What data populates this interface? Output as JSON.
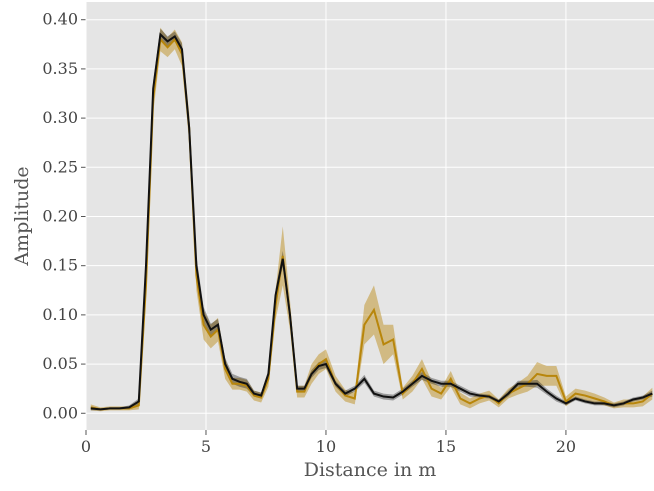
{
  "chart_data": {
    "type": "line",
    "xlabel": "Distance in m",
    "ylabel": "Amplitude",
    "x": [
      0.2,
      0.6,
      1.0,
      1.4,
      1.8,
      2.2,
      2.5,
      2.8,
      3.1,
      3.4,
      3.7,
      4.0,
      4.3,
      4.6,
      4.9,
      5.2,
      5.5,
      5.8,
      6.1,
      6.4,
      6.7,
      7.0,
      7.3,
      7.6,
      7.9,
      8.2,
      8.5,
      8.8,
      9.1,
      9.4,
      9.7,
      10.0,
      10.4,
      10.8,
      11.2,
      11.6,
      12.0,
      12.4,
      12.8,
      13.2,
      13.6,
      14.0,
      14.4,
      14.8,
      15.2,
      15.6,
      16.0,
      16.4,
      16.8,
      17.2,
      17.6,
      18.0,
      18.4,
      18.8,
      19.2,
      19.6,
      20.0,
      20.4,
      20.8,
      21.2,
      21.6,
      22.0,
      22.4,
      22.8,
      23.2,
      23.6
    ],
    "series": [
      {
        "color": "#b8860b",
        "values": [
          0.006,
          0.004,
          0.005,
          0.005,
          0.005,
          0.008,
          0.13,
          0.32,
          0.38,
          0.372,
          0.38,
          0.365,
          0.29,
          0.14,
          0.09,
          0.078,
          0.085,
          0.045,
          0.03,
          0.03,
          0.028,
          0.018,
          0.016,
          0.035,
          0.11,
          0.16,
          0.1,
          0.022,
          0.022,
          0.04,
          0.05,
          0.055,
          0.03,
          0.018,
          0.015,
          0.09,
          0.105,
          0.07,
          0.075,
          0.02,
          0.03,
          0.045,
          0.025,
          0.02,
          0.035,
          0.015,
          0.01,
          0.015,
          0.018,
          0.01,
          0.02,
          0.025,
          0.03,
          0.04,
          0.038,
          0.038,
          0.012,
          0.02,
          0.018,
          0.015,
          0.012,
          0.008,
          0.01,
          0.01,
          0.012,
          0.02
        ],
        "errors": [
          0.003,
          0.002,
          0.002,
          0.002,
          0.002,
          0.004,
          0.012,
          0.015,
          0.012,
          0.01,
          0.01,
          0.012,
          0.015,
          0.015,
          0.015,
          0.012,
          0.012,
          0.01,
          0.006,
          0.006,
          0.006,
          0.005,
          0.005,
          0.008,
          0.015,
          0.03,
          0.015,
          0.006,
          0.006,
          0.01,
          0.01,
          0.01,
          0.008,
          0.006,
          0.006,
          0.02,
          0.025,
          0.02,
          0.015,
          0.006,
          0.008,
          0.01,
          0.008,
          0.006,
          0.008,
          0.006,
          0.005,
          0.005,
          0.005,
          0.004,
          0.005,
          0.006,
          0.008,
          0.012,
          0.01,
          0.01,
          0.005,
          0.005,
          0.005,
          0.005,
          0.004,
          0.003,
          0.004,
          0.004,
          0.005,
          0.006
        ]
      },
      {
        "color": "#111111",
        "values": [
          0.005,
          0.004,
          0.005,
          0.005,
          0.006,
          0.012,
          0.15,
          0.33,
          0.385,
          0.378,
          0.383,
          0.37,
          0.29,
          0.15,
          0.1,
          0.085,
          0.09,
          0.05,
          0.035,
          0.032,
          0.03,
          0.02,
          0.018,
          0.04,
          0.12,
          0.157,
          0.1,
          0.025,
          0.025,
          0.04,
          0.048,
          0.05,
          0.03,
          0.02,
          0.025,
          0.035,
          0.02,
          0.017,
          0.016,
          0.022,
          0.03,
          0.038,
          0.033,
          0.03,
          0.03,
          0.025,
          0.02,
          0.018,
          0.017,
          0.012,
          0.02,
          0.03,
          0.03,
          0.03,
          0.022,
          0.015,
          0.01,
          0.015,
          0.012,
          0.01,
          0.01,
          0.008,
          0.01,
          0.014,
          0.016,
          0.02
        ],
        "errors": [
          0.002,
          0.001,
          0.001,
          0.001,
          0.002,
          0.003,
          0.006,
          0.008,
          0.006,
          0.005,
          0.005,
          0.006,
          0.008,
          0.01,
          0.008,
          0.006,
          0.006,
          0.006,
          0.005,
          0.005,
          0.005,
          0.003,
          0.003,
          0.004,
          0.006,
          0.008,
          0.006,
          0.003,
          0.003,
          0.004,
          0.004,
          0.004,
          0.003,
          0.003,
          0.003,
          0.004,
          0.003,
          0.003,
          0.003,
          0.003,
          0.003,
          0.004,
          0.003,
          0.003,
          0.003,
          0.003,
          0.003,
          0.002,
          0.002,
          0.002,
          0.003,
          0.003,
          0.003,
          0.004,
          0.003,
          0.003,
          0.002,
          0.002,
          0.002,
          0.002,
          0.002,
          0.002,
          0.002,
          0.002,
          0.002,
          0.003
        ]
      }
    ],
    "xlim": [
      0,
      23.67
    ],
    "ylim": [
      -0.017,
      0.418
    ],
    "xticks": [
      0,
      5,
      10,
      15,
      20
    ],
    "yticks": [
      {
        "value": 0,
        "label": "0.00"
      },
      0.05,
      {
        "value": 0.1,
        "label": "0.10"
      },
      0.15,
      {
        "value": 0.2,
        "label": "0.20"
      },
      0.25,
      {
        "value": 0.3,
        "label": "0.30"
      },
      0.35,
      {
        "value": 0.4,
        "label": "0.40"
      }
    ],
    "grid": true
  }
}
